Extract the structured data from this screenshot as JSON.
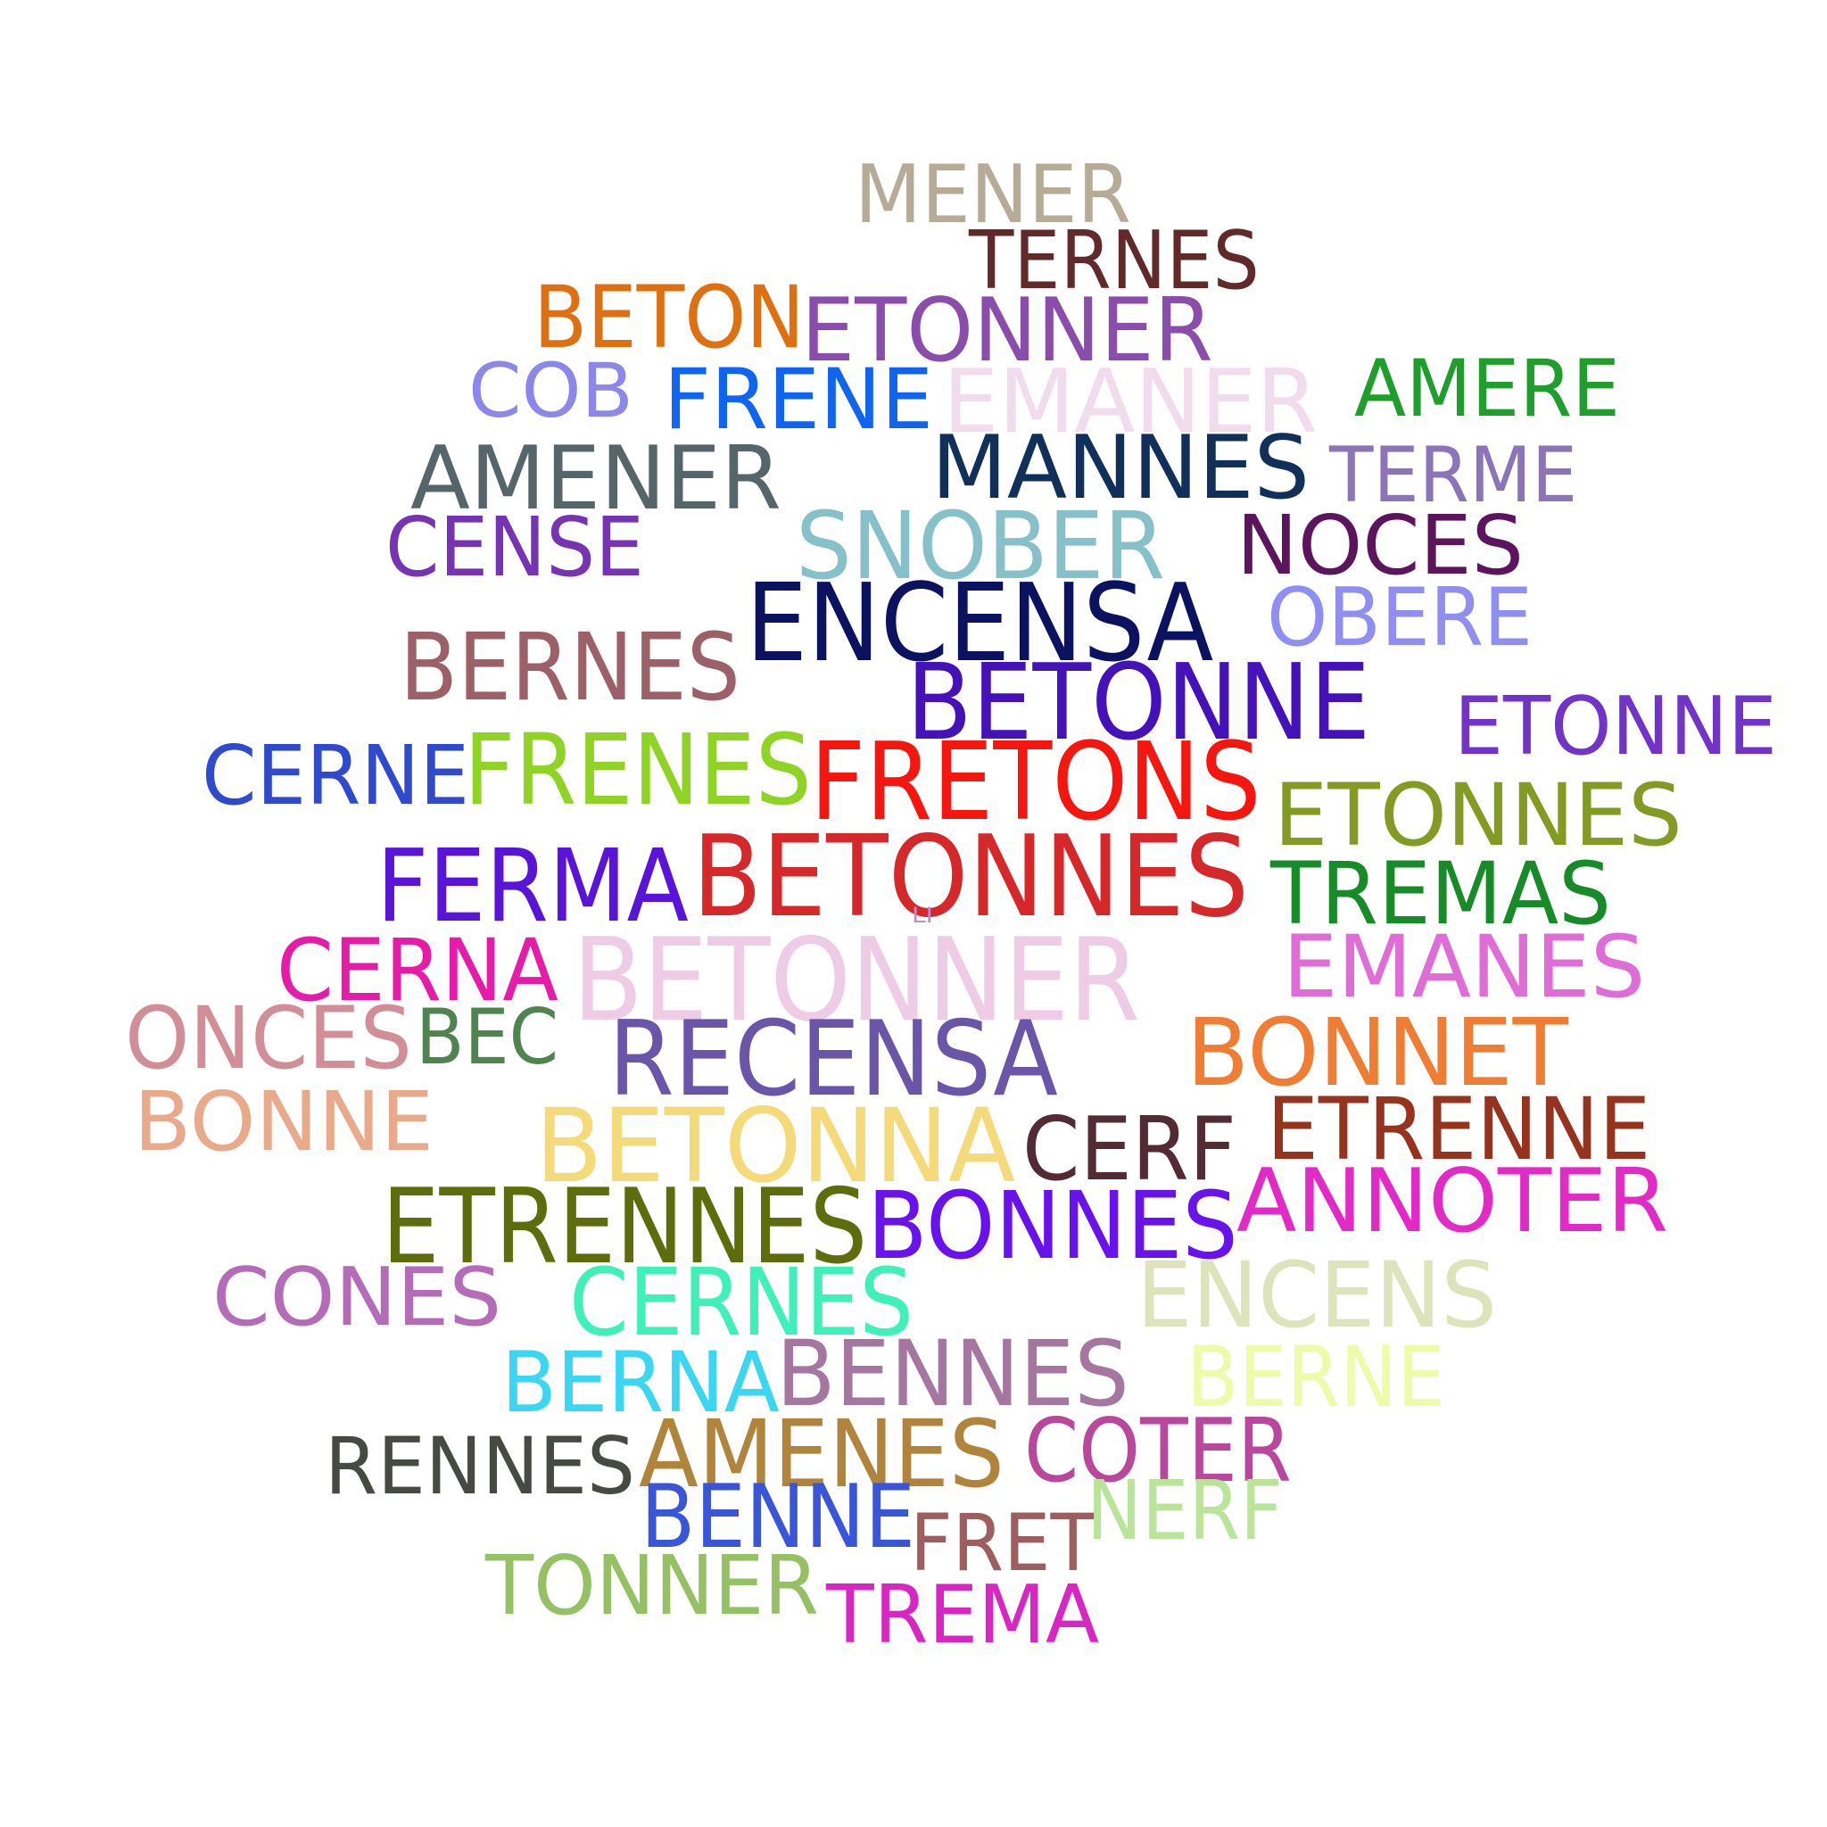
{
  "words": [
    {
      "text": "MENER",
      "color": "#b5ab97"
    },
    {
      "text": "TERNES",
      "color": "#62292a"
    },
    {
      "text": "BETON",
      "color": "#de7012"
    },
    {
      "text": "ETONNER",
      "color": "#8a4dab"
    },
    {
      "text": "COB",
      "color": "#8c87e8"
    },
    {
      "text": "FRENE",
      "color": "#0f64f0"
    },
    {
      "text": "EMANER",
      "color": "#f0dced"
    },
    {
      "text": "AMERE",
      "color": "#1f9e2b"
    },
    {
      "text": "AMENER",
      "color": "#56656a"
    },
    {
      "text": "MANNES",
      "color": "#102f59"
    },
    {
      "text": "TERME",
      "color": "#8c74b8"
    },
    {
      "text": "CENSE",
      "color": "#7634b3"
    },
    {
      "text": "SNOBER",
      "color": "#86c0c8"
    },
    {
      "text": "NOCES",
      "color": "#5c145d"
    },
    {
      "text": "ENCENSA",
      "color": "#0b1260"
    },
    {
      "text": "OBERE",
      "color": "#8f8ef2"
    },
    {
      "text": "BERNES",
      "color": "#9c6068"
    },
    {
      "text": "BETONNE",
      "color": "#4412b8"
    },
    {
      "text": "ETONNE",
      "color": "#7133c8"
    },
    {
      "text": "CERNE",
      "color": "#2f4acc"
    },
    {
      "text": "FRENES",
      "color": "#8fd424"
    },
    {
      "text": "FRETONS",
      "color": "#f4160f"
    },
    {
      "text": "ETONNES",
      "color": "#839a23"
    },
    {
      "text": "FERMA",
      "color": "#5a14d8"
    },
    {
      "text": "BETONNES",
      "color": "#d5282a"
    },
    {
      "text": "TREMAS",
      "color": "#168b27"
    },
    {
      "text": "LI",
      "color": "#b98cd4"
    },
    {
      "text": "CERNA",
      "color": "#e41ca8"
    },
    {
      "text": "BETONNER",
      "color": "#efcce6"
    },
    {
      "text": "EMANES",
      "color": "#e06cd8"
    },
    {
      "text": "ONCES",
      "color": "#d28e96"
    },
    {
      "text": "BEC",
      "color": "#4f8451"
    },
    {
      "text": "RECENSA",
      "color": "#6a55a8"
    },
    {
      "text": "BONNET",
      "color": "#ef7e34"
    },
    {
      "text": "BONNE",
      "color": "#e8aa8a"
    },
    {
      "text": "BETONNA",
      "color": "#f5da7a"
    },
    {
      "text": "CERF",
      "color": "#522b34"
    },
    {
      "text": "ETRENNE",
      "color": "#95331f"
    },
    {
      "text": "ETRENNES",
      "color": "#5e6d0c"
    },
    {
      "text": "BONNES",
      "color": "#6a12ec"
    },
    {
      "text": "ANNOTER",
      "color": "#e22ac6"
    },
    {
      "text": "CONES",
      "color": "#b56cb8"
    },
    {
      "text": "CERNES",
      "color": "#3ff0b8"
    },
    {
      "text": "ENCENS",
      "color": "#dde4bc"
    },
    {
      "text": "BERNA",
      "color": "#3ad6f2"
    },
    {
      "text": "BENNES",
      "color": "#a5769f"
    },
    {
      "text": "BERNE",
      "color": "#eefcaa"
    },
    {
      "text": "RENNES",
      "color": "#474943"
    },
    {
      "text": "AMENES",
      "color": "#b0843a"
    },
    {
      "text": "COTER",
      "color": "#b9479c"
    },
    {
      "text": "BENNE",
      "color": "#3a56d8"
    },
    {
      "text": "FRET",
      "color": "#9c5e5e"
    },
    {
      "text": "NERF",
      "color": "#b9e49a"
    },
    {
      "text": "TONNER",
      "color": "#96c064"
    },
    {
      "text": "TREMA",
      "color": "#d826c2"
    }
  ]
}
